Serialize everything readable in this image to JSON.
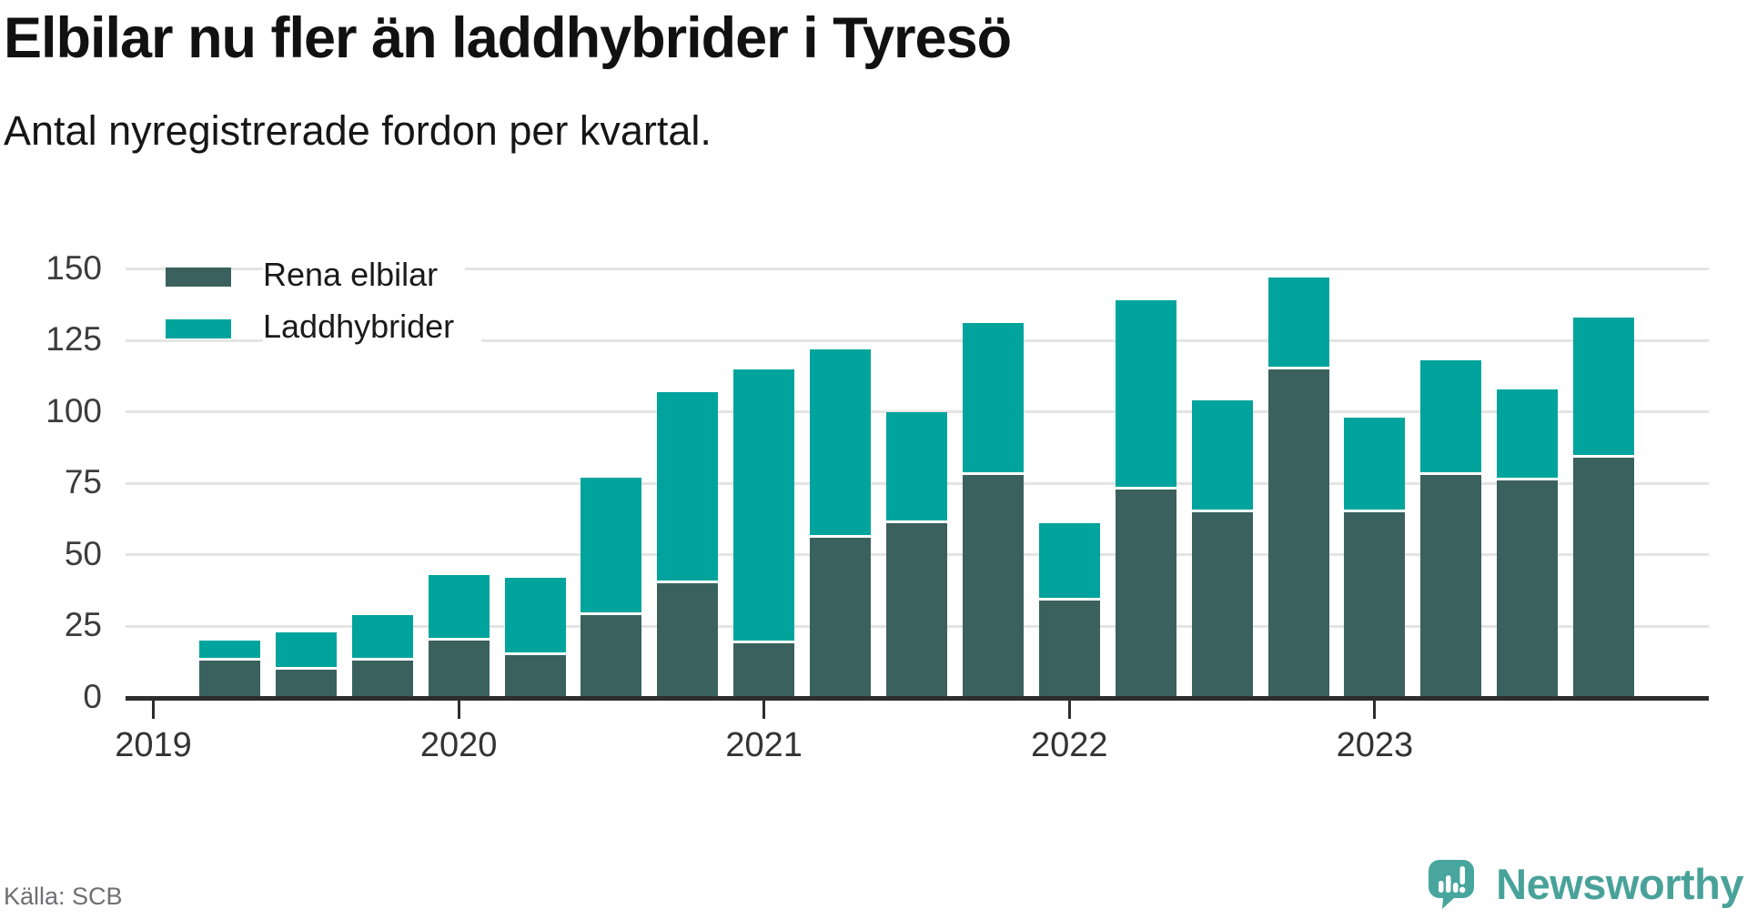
{
  "header": {
    "title": "Elbilar nu fler än laddhybrider i Tyresö",
    "subtitle": "Antal nyregistrerade fordon per kvartal."
  },
  "legend": [
    {
      "label": "Rena elbilar",
      "color": "#3A615D"
    },
    {
      "label": "Laddhybrider",
      "color": "#00A49C"
    }
  ],
  "footer": {
    "source": "Källa: SCB",
    "brand": "Newsworthy"
  },
  "chart_data": {
    "type": "bar",
    "stacked": true,
    "title": "Elbilar nu fler än laddhybrider i Tyresö",
    "subtitle": "Antal nyregistrerade fordon per kvartal.",
    "quarters": [
      "2019-Q2",
      "2019-Q3",
      "2019-Q4",
      "2020-Q1",
      "2020-Q2",
      "2020-Q3",
      "2020-Q4",
      "2021-Q1",
      "2021-Q2",
      "2021-Q3",
      "2021-Q4",
      "2022-Q1",
      "2022-Q2",
      "2022-Q3",
      "2022-Q4",
      "2023-Q1",
      "2023-Q2",
      "2023-Q3",
      "2023-Q4"
    ],
    "series": [
      {
        "name": "Rena elbilar",
        "color": "#3A615D",
        "values": [
          13,
          10,
          13,
          20,
          15,
          29,
          40,
          19,
          56,
          61,
          78,
          34,
          73,
          65,
          115,
          65,
          78,
          76,
          84
        ]
      },
      {
        "name": "Laddhybrider",
        "color": "#00A49C",
        "values": [
          7,
          13,
          16,
          23,
          27,
          48,
          67,
          96,
          66,
          39,
          53,
          27,
          66,
          39,
          32,
          33,
          40,
          32,
          49
        ]
      }
    ],
    "x_tick_labels": [
      "2019",
      "2020",
      "2021",
      "2022",
      "2023"
    ],
    "yticks": [
      0,
      25,
      50,
      75,
      100,
      125,
      150
    ],
    "ylim": [
      0,
      150
    ],
    "grid": "horizontal",
    "legend_position": "top-left",
    "xlabel": "",
    "ylabel": ""
  }
}
